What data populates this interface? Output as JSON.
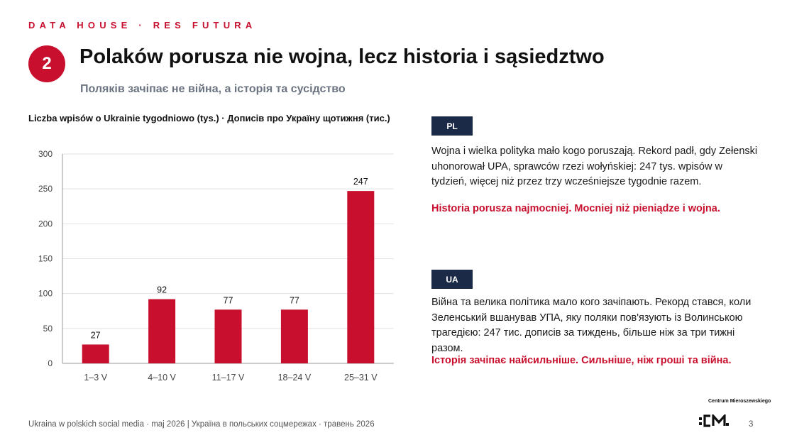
{
  "header": {
    "brand": "DATA HOUSE · RES FUTURA",
    "section_number": "2",
    "title": "Polaków porusza nie wojna, lecz historia i sąsiedztwo",
    "subtitle": "Поляків зачіпає не війна, а історія та сусідство"
  },
  "chart_data": {
    "type": "bar",
    "title": "Liczba wpisów o Ukrainie tygodniowo (tys.) · Дописів про Україну щотижня (тис.)",
    "categories": [
      "1–3 V",
      "4–10 V",
      "11–17 V",
      "18–24 V",
      "25–31 V"
    ],
    "values": [
      27,
      92,
      77,
      77,
      247
    ],
    "ylim": [
      0,
      300
    ],
    "yticks": [
      0,
      50,
      100,
      150,
      200,
      250,
      300
    ],
    "xlabel": "",
    "ylabel": "",
    "grid": true,
    "bar_color": "#c8102e",
    "data_labels": true
  },
  "panel_pl": {
    "badge": "PL",
    "text": "Wojna i wielka polityka mało kogo poruszają. Rekord padł, gdy Zełenski uhonorował UPA, sprawców rzezi wołyńskiej: 247 tys. wpisów w tydzień, więcej niż przez trzy wcześniejsze tygodnie razem.",
    "accent": "Historia porusza najmocniej. Mocniej niż pieniądze i wojna."
  },
  "panel_ua": {
    "badge": "UA",
    "text": "Війна та велика політика мало кого зачіпають. Рекорд стався, коли Зеленський вшанував УПА, яку поляки пов'язують із Волинською трагедією: 247 тис. дописів за тиждень, більше ніж за три тижні разом.",
    "accent": "Історія зачіпає найсильніше. Сильніше, ніж гроші та війна."
  },
  "footer": {
    "text": "Ukraina w polskich social media · maj 2026 | Україна в польських соцмережах · травень 2026",
    "page_number": "3"
  },
  "logo": {
    "name": "Centrum Mieroszewskiego",
    "icon": "cm-logo-icon"
  },
  "colors": {
    "accent": "#c8102e",
    "badge_bg": "#1b2a47",
    "subtitle": "#6b7480"
  }
}
